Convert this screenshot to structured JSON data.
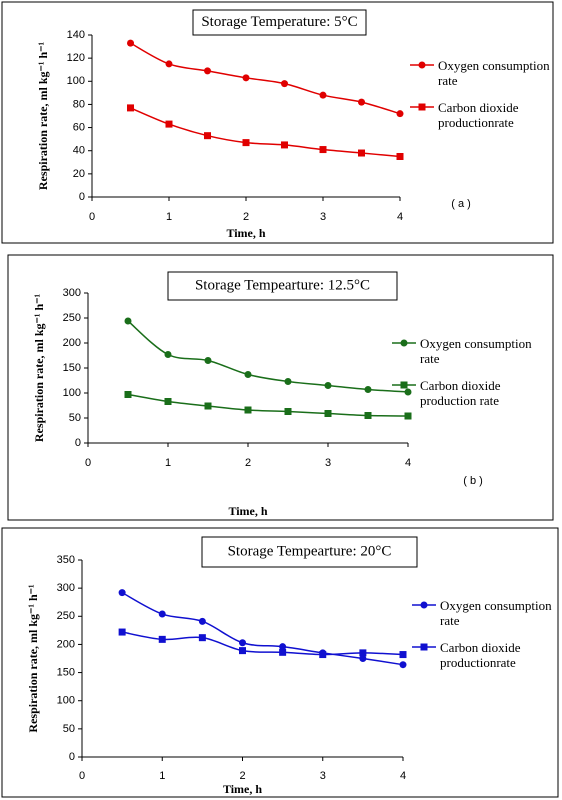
{
  "chart_data": [
    {
      "type": "line",
      "title": "Storage Temperature: 5°C",
      "annotation": "( a )",
      "x_label": "Time, h",
      "y_label": "Respiration rate, ml kg⁻¹ h⁻¹",
      "x": [
        0.5,
        1,
        1.5,
        2,
        2.5,
        3,
        3.5,
        4
      ],
      "xlim": [
        0,
        4
      ],
      "xticks": [
        0,
        1,
        2,
        3,
        4
      ],
      "ylim": [
        0,
        140
      ],
      "yticks": [
        0,
        20,
        40,
        60,
        80,
        100,
        120,
        140
      ],
      "series": [
        {
          "name": "Oxygen consumption rate",
          "color": "#e00000",
          "marker": "circle",
          "values": [
            133,
            115,
            109,
            103,
            98,
            88,
            82,
            72
          ]
        },
        {
          "name": "Carbon dioxide productionrate",
          "color": "#e00000",
          "marker": "square",
          "values": [
            77,
            63,
            53,
            47,
            45,
            41,
            38,
            35
          ]
        }
      ]
    },
    {
      "type": "line",
      "title": "Storage Tempearture: 12.5°C",
      "annotation": "( b )",
      "x_label": "Time, h",
      "y_label": "Respiration rate, ml kg⁻¹ h⁻¹",
      "x": [
        0.5,
        1,
        1.5,
        2,
        2.5,
        3,
        3.5,
        4
      ],
      "xlim": [
        0,
        4
      ],
      "xticks": [
        0,
        1,
        2,
        3,
        4
      ],
      "ylim": [
        0,
        300
      ],
      "yticks": [
        0,
        50,
        100,
        150,
        200,
        250,
        300
      ],
      "series": [
        {
          "name": "Oxygen consumption rate",
          "color": "#1a6e1a",
          "marker": "circle",
          "values": [
            244,
            177,
            165,
            137,
            123,
            115,
            107,
            102
          ]
        },
        {
          "name": "Carbon dioxide production rate",
          "color": "#1a6e1a",
          "marker": "square",
          "values": [
            97,
            83,
            74,
            66,
            63,
            59,
            55,
            54
          ]
        }
      ]
    },
    {
      "type": "line",
      "title": "Storage Tempearture: 20°C",
      "x_label": "Time, h",
      "y_label": "Respiration rate, ml kg⁻¹ h⁻¹",
      "x": [
        0.5,
        1,
        1.5,
        2,
        2.5,
        3,
        3.5,
        4
      ],
      "xlim": [
        0,
        4
      ],
      "xticks": [
        0,
        1,
        2,
        3,
        4
      ],
      "ylim": [
        0,
        350
      ],
      "yticks": [
        0,
        50,
        100,
        150,
        200,
        250,
        300,
        350
      ],
      "series": [
        {
          "name": "Oxygen consumption rate",
          "color": "#1010d0",
          "marker": "circle",
          "values": [
            292,
            254,
            241,
            203,
            196,
            185,
            175,
            164
          ]
        },
        {
          "name": "Carbon dioxide productionrate",
          "color": "#1010d0",
          "marker": "square",
          "values": [
            222,
            209,
            212,
            189,
            186,
            182,
            185,
            182
          ]
        }
      ]
    }
  ]
}
